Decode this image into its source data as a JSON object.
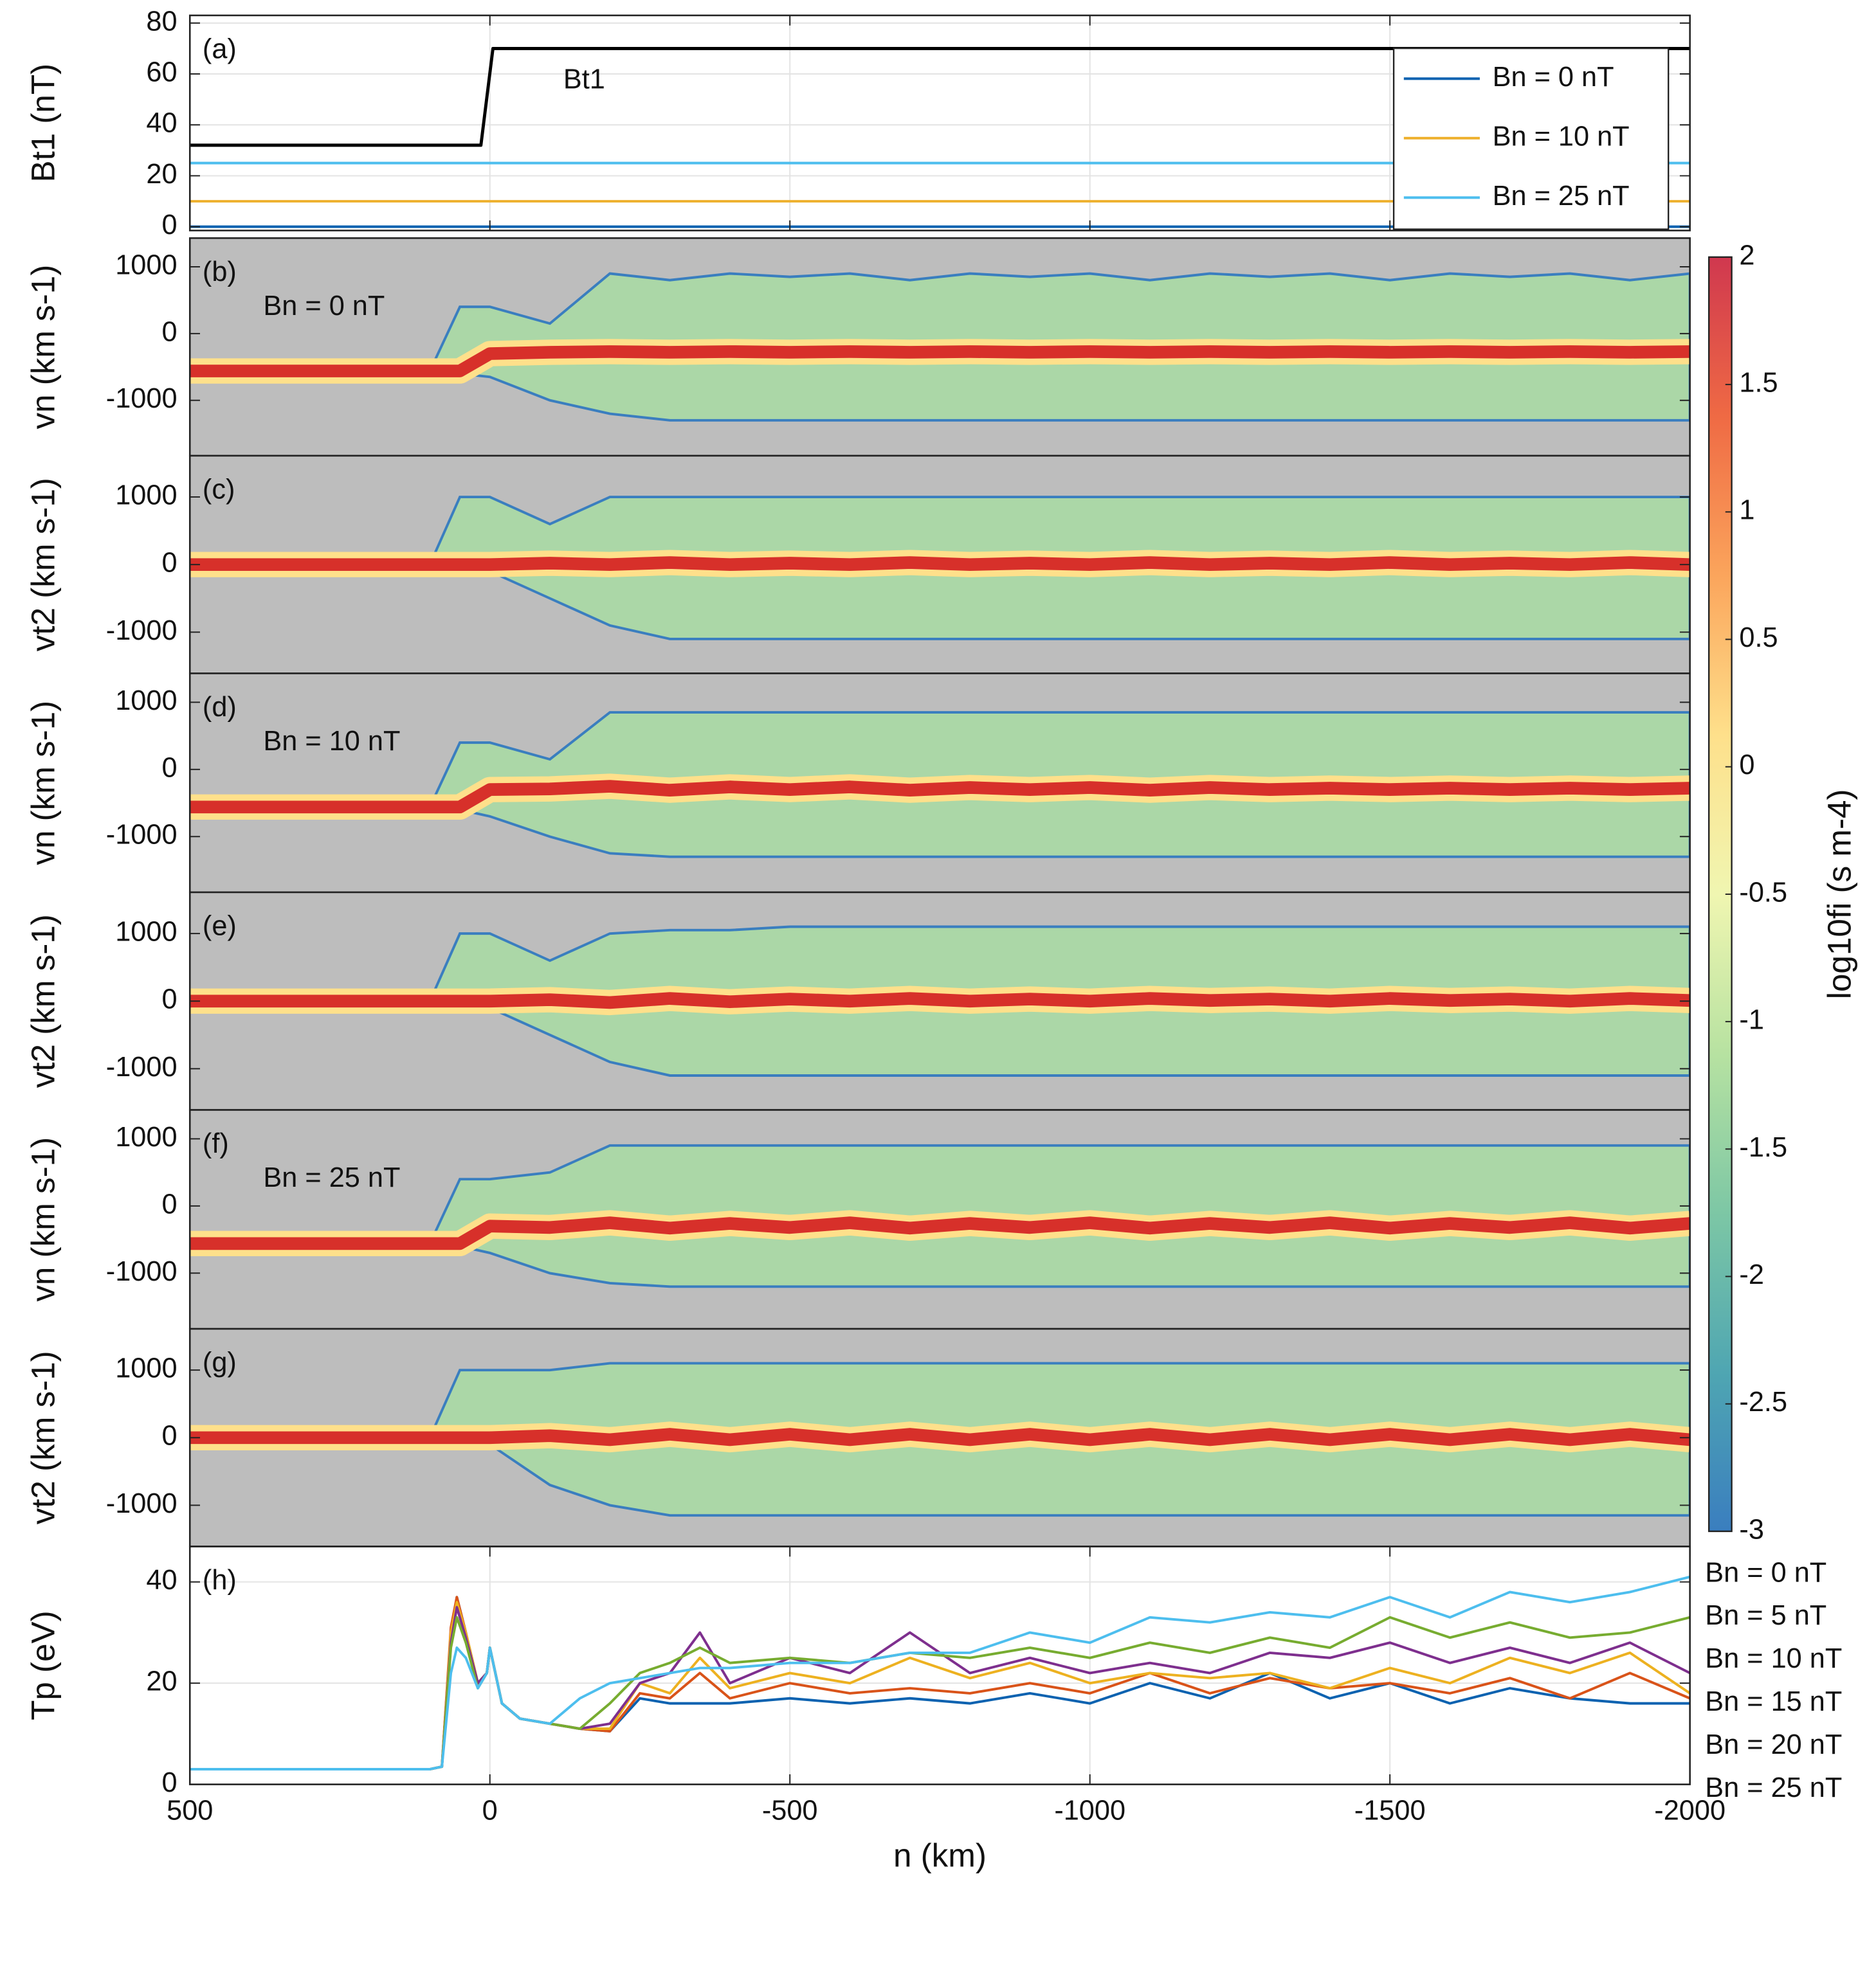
{
  "chart_data": [
    {
      "type": "line",
      "label": "(a)",
      "ylabel": "Bt1 (nT)",
      "xlim": [
        500,
        -2000
      ],
      "xticks": [
        500,
        0,
        -500,
        -1000,
        -1500,
        -2000
      ],
      "ylim": [
        -1.5,
        83
      ],
      "yticks": [
        0,
        20,
        40,
        60,
        80
      ],
      "grid": true,
      "legend": "upper right",
      "series": [
        {
          "name": "Bt1",
          "color": "#000000",
          "annotated": true,
          "x": [
            500,
            15,
            -5,
            -2000
          ],
          "values": [
            32,
            32,
            70,
            70
          ]
        },
        {
          "name": "Bn = 0 nT",
          "color": "#0b62b0",
          "x": [
            500,
            -2000
          ],
          "values": [
            0,
            0
          ]
        },
        {
          "name": "Bn = 10 nT",
          "color": "#eeb12f",
          "x": [
            500,
            -2000
          ],
          "values": [
            10,
            10
          ]
        },
        {
          "name": "Bn = 25 nT",
          "color": "#4dbeee",
          "x": [
            500,
            -2000
          ],
          "values": [
            25,
            25
          ]
        }
      ]
    },
    {
      "type": "heatmap",
      "label": "(b)",
      "annotation": "Bn = 0 nT",
      "ylabel": "vn (km s-1)",
      "xlim": [
        500,
        -2000
      ],
      "ylim": [
        -1830,
        1430
      ],
      "yticks": [
        -1000,
        0,
        1000
      ],
      "x": [
        500,
        100,
        50,
        0,
        -100,
        -200,
        -300,
        -400,
        -500,
        -600,
        -700,
        -800,
        -900,
        -1000,
        -1100,
        -1200,
        -1300,
        -1400,
        -1500,
        -1600,
        -1700,
        -1800,
        -1900,
        -2000
      ],
      "core": [
        -560,
        -560,
        -560,
        -300,
        -280,
        -270,
        -280,
        -270,
        -280,
        -270,
        -280,
        -270,
        -280,
        -270,
        -280,
        -270,
        -280,
        -270,
        -280,
        -270,
        -280,
        -270,
        -280,
        -270
      ],
      "upper": [
        -560,
        -560,
        400,
        400,
        150,
        900,
        800,
        900,
        850,
        900,
        800,
        900,
        850,
        900,
        800,
        900,
        850,
        900,
        800,
        900,
        850,
        900,
        800,
        900
      ],
      "lower": [
        -560,
        -560,
        -600,
        -650,
        -1000,
        -1200,
        -1300,
        -1300,
        -1300,
        -1300,
        -1300,
        -1300,
        -1300,
        -1300,
        -1300,
        -1300,
        -1300,
        -1300,
        -1300,
        -1300,
        -1300,
        -1300,
        -1300,
        -1300
      ]
    },
    {
      "type": "heatmap",
      "label": "(c)",
      "ylabel": "vt2 (km s-1)",
      "xlim": [
        500,
        -2000
      ],
      "ylim": [
        -1610,
        1610
      ],
      "yticks": [
        -1000,
        0,
        1000
      ],
      "x": [
        500,
        100,
        50,
        0,
        -100,
        -200,
        -300,
        -400,
        -500,
        -600,
        -700,
        -800,
        -900,
        -1000,
        -1100,
        -1200,
        -1300,
        -1400,
        -1500,
        -1600,
        -1700,
        -1800,
        -1900,
        -2000
      ],
      "core": [
        0,
        0,
        0,
        0,
        20,
        0,
        30,
        0,
        20,
        0,
        30,
        0,
        20,
        0,
        30,
        0,
        20,
        0,
        30,
        0,
        20,
        0,
        30,
        0
      ],
      "upper": [
        0,
        0,
        1000,
        1000,
        600,
        1000,
        1000,
        1000,
        1000,
        1000,
        1000,
        1000,
        1000,
        1000,
        1000,
        1000,
        1000,
        1000,
        1000,
        1000,
        1000,
        1000,
        1000,
        1000
      ],
      "lower": [
        0,
        0,
        -50,
        -100,
        -500,
        -900,
        -1100,
        -1100,
        -1100,
        -1100,
        -1100,
        -1100,
        -1100,
        -1100,
        -1100,
        -1100,
        -1100,
        -1100,
        -1100,
        -1100,
        -1100,
        -1100,
        -1100,
        -1100
      ]
    },
    {
      "type": "heatmap",
      "label": "(d)",
      "annotation": "Bn = 10 nT",
      "ylabel": "vn (km s-1)",
      "xlim": [
        500,
        -2000
      ],
      "ylim": [
        -1830,
        1430
      ],
      "yticks": [
        -1000,
        0,
        1000
      ],
      "x": [
        500,
        100,
        50,
        0,
        -100,
        -200,
        -300,
        -400,
        -500,
        -600,
        -700,
        -800,
        -900,
        -1000,
        -1100,
        -1200,
        -1300,
        -1400,
        -1500,
        -1600,
        -1700,
        -1800,
        -1900,
        -2000
      ],
      "core": [
        -560,
        -560,
        -560,
        -300,
        -290,
        -250,
        -310,
        -260,
        -300,
        -260,
        -310,
        -270,
        -300,
        -270,
        -310,
        -270,
        -300,
        -280,
        -300,
        -280,
        -300,
        -280,
        -300,
        -280
      ],
      "upper": [
        -560,
        -560,
        400,
        400,
        150,
        850,
        850,
        850,
        850,
        850,
        850,
        850,
        850,
        850,
        850,
        850,
        850,
        850,
        850,
        850,
        850,
        850,
        850,
        850
      ],
      "lower": [
        -560,
        -560,
        -600,
        -700,
        -1000,
        -1250,
        -1300,
        -1300,
        -1300,
        -1300,
        -1300,
        -1300,
        -1300,
        -1300,
        -1300,
        -1300,
        -1300,
        -1300,
        -1300,
        -1300,
        -1300,
        -1300,
        -1300,
        -1300
      ]
    },
    {
      "type": "heatmap",
      "label": "(e)",
      "ylabel": "vt2 (km s-1)",
      "xlim": [
        500,
        -2000
      ],
      "ylim": [
        -1610,
        1610
      ],
      "yticks": [
        -1000,
        0,
        1000
      ],
      "x": [
        500,
        100,
        50,
        0,
        -100,
        -200,
        -300,
        -400,
        -500,
        -600,
        -700,
        -800,
        -900,
        -1000,
        -1100,
        -1200,
        -1300,
        -1400,
        -1500,
        -1600,
        -1700,
        -1800,
        -1900,
        -2000
      ],
      "core": [
        0,
        0,
        0,
        0,
        20,
        -20,
        40,
        -10,
        30,
        0,
        40,
        0,
        30,
        0,
        40,
        10,
        30,
        0,
        40,
        10,
        30,
        0,
        40,
        10
      ],
      "upper": [
        0,
        0,
        1000,
        1000,
        600,
        1000,
        1050,
        1050,
        1100,
        1100,
        1100,
        1100,
        1100,
        1100,
        1100,
        1100,
        1100,
        1100,
        1100,
        1100,
        1100,
        1100,
        1100,
        1100
      ],
      "lower": [
        0,
        0,
        -50,
        -100,
        -500,
        -900,
        -1100,
        -1100,
        -1100,
        -1100,
        -1100,
        -1100,
        -1100,
        -1100,
        -1100,
        -1100,
        -1100,
        -1100,
        -1100,
        -1100,
        -1100,
        -1100,
        -1100,
        -1100
      ]
    },
    {
      "type": "heatmap",
      "label": "(f)",
      "annotation": "Bn = 25 nT",
      "ylabel": "vn (km s-1)",
      "xlim": [
        500,
        -2000
      ],
      "ylim": [
        -1830,
        1430
      ],
      "yticks": [
        -1000,
        0,
        1000
      ],
      "x": [
        500,
        100,
        50,
        0,
        -100,
        -200,
        -300,
        -400,
        -500,
        -600,
        -700,
        -800,
        -900,
        -1000,
        -1100,
        -1200,
        -1300,
        -1400,
        -1500,
        -1600,
        -1700,
        -1800,
        -1900,
        -2000
      ],
      "core": [
        -560,
        -560,
        -560,
        -300,
        -320,
        -250,
        -330,
        -260,
        -320,
        -250,
        -330,
        -260,
        -320,
        -250,
        -330,
        -260,
        -320,
        -250,
        -330,
        -260,
        -320,
        -250,
        -330,
        -260
      ],
      "upper": [
        -560,
        -560,
        400,
        400,
        500,
        900,
        900,
        900,
        900,
        900,
        900,
        900,
        900,
        900,
        900,
        900,
        900,
        900,
        900,
        900,
        900,
        900,
        900,
        900
      ],
      "lower": [
        -560,
        -560,
        -600,
        -700,
        -1000,
        -1150,
        -1200,
        -1200,
        -1200,
        -1200,
        -1200,
        -1200,
        -1200,
        -1200,
        -1200,
        -1200,
        -1200,
        -1200,
        -1200,
        -1200,
        -1200,
        -1200,
        -1200,
        -1200
      ]
    },
    {
      "type": "heatmap",
      "label": "(g)",
      "ylabel": "vt2 (km s-1)",
      "xlim": [
        500,
        -2000
      ],
      "ylim": [
        -1610,
        1610
      ],
      "yticks": [
        -1000,
        0,
        1000
      ],
      "x": [
        500,
        100,
        50,
        0,
        -100,
        -200,
        -300,
        -400,
        -500,
        -600,
        -700,
        -800,
        -900,
        -1000,
        -1100,
        -1200,
        -1300,
        -1400,
        -1500,
        -1600,
        -1700,
        -1800,
        -1900,
        -2000
      ],
      "core": [
        0,
        0,
        0,
        0,
        30,
        -30,
        50,
        -30,
        50,
        -30,
        50,
        -30,
        50,
        -30,
        50,
        -30,
        50,
        -30,
        50,
        -30,
        50,
        -30,
        50,
        -30
      ],
      "upper": [
        0,
        0,
        1000,
        1000,
        1000,
        1100,
        1100,
        1100,
        1100,
        1100,
        1100,
        1100,
        1100,
        1100,
        1100,
        1100,
        1100,
        1100,
        1100,
        1100,
        1100,
        1100,
        1100,
        1100
      ],
      "lower": [
        0,
        0,
        -50,
        -100,
        -700,
        -1000,
        -1150,
        -1150,
        -1150,
        -1150,
        -1150,
        -1150,
        -1150,
        -1150,
        -1150,
        -1150,
        -1150,
        -1150,
        -1150,
        -1150,
        -1150,
        -1150,
        -1150,
        -1150
      ]
    },
    {
      "type": "line",
      "label": "(h)",
      "ylabel": "Tp (eV)",
      "xlabel": "n (km)",
      "xlim": [
        500,
        -2000
      ],
      "xticks": [
        500,
        0,
        -500,
        -1000,
        -1500,
        -2000
      ],
      "ylim": [
        0,
        47
      ],
      "yticks": [
        0,
        20,
        40
      ],
      "grid": true,
      "legend": "outside right",
      "x": [
        500,
        100,
        80,
        65,
        55,
        40,
        20,
        5,
        0,
        -20,
        -50,
        -100,
        -150,
        -200,
        -250,
        -300,
        -350,
        -400,
        -500,
        -600,
        -700,
        -800,
        -900,
        -1000,
        -1100,
        -1200,
        -1300,
        -1400,
        -1500,
        -1600,
        -1700,
        -1800,
        -1900,
        -2000
      ],
      "series": [
        {
          "name": "Bn = 0 nT",
          "color": "#0b62b0",
          "values": [
            3,
            3,
            3.5,
            30,
            37,
            30,
            20,
            22,
            27,
            16,
            13,
            12,
            11,
            10.5,
            17,
            16,
            16,
            16,
            17,
            16,
            17,
            16,
            18,
            16,
            20,
            17,
            22,
            17,
            20,
            16,
            19,
            17,
            16,
            16
          ]
        },
        {
          "name": "Bn = 5 nT",
          "color": "#d95319",
          "values": [
            3,
            3,
            3.5,
            31,
            37,
            30,
            20,
            22,
            27,
            16,
            13,
            12,
            11,
            10.5,
            18,
            17,
            22,
            17,
            20,
            18,
            19,
            18,
            20,
            18,
            22,
            18,
            21,
            19,
            20,
            18,
            21,
            17,
            22,
            17
          ]
        },
        {
          "name": "Bn = 10 nT",
          "color": "#edb120",
          "values": [
            3,
            3,
            3.5,
            30,
            36,
            30,
            20,
            22,
            27,
            16,
            13,
            12,
            11,
            11,
            20,
            18,
            25,
            19,
            22,
            20,
            25,
            21,
            24,
            20,
            22,
            21,
            22,
            19,
            23,
            20,
            25,
            22,
            26,
            18
          ]
        },
        {
          "name": "Bn = 15 nT",
          "color": "#7e2f8e",
          "values": [
            3,
            3,
            3.5,
            28,
            35,
            29,
            20,
            22,
            27,
            16,
            13,
            12,
            11,
            12,
            20,
            22,
            30,
            20,
            25,
            22,
            30,
            22,
            25,
            22,
            24,
            22,
            26,
            25,
            28,
            24,
            27,
            24,
            28,
            22
          ]
        },
        {
          "name": "Bn = 20 nT",
          "color": "#77ac30",
          "values": [
            3,
            3,
            3.5,
            27,
            33,
            28,
            19,
            22,
            27,
            16,
            13,
            12,
            11,
            16,
            22,
            24,
            27,
            24,
            25,
            24,
            26,
            25,
            27,
            25,
            28,
            26,
            29,
            27,
            33,
            29,
            32,
            29,
            30,
            33
          ]
        },
        {
          "name": "Bn = 25 nT",
          "color": "#4dbeee",
          "values": [
            3,
            3,
            3.5,
            22,
            27,
            25,
            19,
            22,
            27,
            16,
            13,
            12,
            17,
            20,
            21,
            22,
            23,
            23,
            24,
            24,
            26,
            26,
            30,
            28,
            33,
            32,
            34,
            33,
            37,
            33,
            38,
            36,
            38,
            41
          ]
        }
      ]
    },
    {
      "type": "colorbar",
      "label": "log10fi (s m-4)",
      "clim": [
        -3,
        2
      ],
      "ticks": [
        -3,
        -2.5,
        -2,
        -1.5,
        -1,
        -0.5,
        0,
        0.5,
        1,
        1.5,
        2
      ],
      "colormap": [
        "#3a7ebf",
        "#4fa6b2",
        "#7dc7a5",
        "#b7e2a1",
        "#f0f6b1",
        "#fee08b",
        "#fba55c",
        "#ef6a44",
        "#d0384f"
      ]
    }
  ]
}
